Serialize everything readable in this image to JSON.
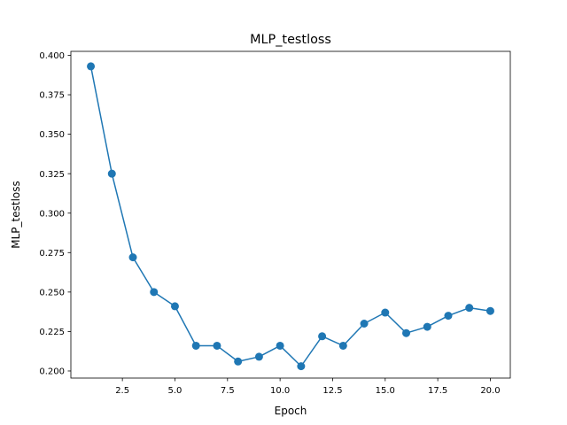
{
  "chart_data": {
    "type": "line",
    "title": "MLP_testloss",
    "xlabel": "Epoch",
    "ylabel": "MLP_testloss",
    "xlim": [
      0.05,
      20.95
    ],
    "ylim": [
      0.1955,
      0.4025
    ],
    "xticks": [
      2.5,
      5.0,
      7.5,
      10.0,
      12.5,
      15.0,
      17.5,
      20.0
    ],
    "xtick_labels": [
      "2.5",
      "5.0",
      "7.5",
      "10.0",
      "12.5",
      "15.0",
      "17.5",
      "20.0"
    ],
    "yticks": [
      0.2,
      0.225,
      0.25,
      0.275,
      0.3,
      0.325,
      0.35,
      0.375,
      0.4
    ],
    "ytick_labels": [
      "0.200",
      "0.225",
      "0.250",
      "0.275",
      "0.300",
      "0.325",
      "0.350",
      "0.375",
      "0.400"
    ],
    "grid": false,
    "series": [
      {
        "color": "#1f77b4",
        "marker": "circle",
        "x": [
          1,
          2,
          3,
          4,
          5,
          6,
          7,
          8,
          9,
          10,
          11,
          12,
          13,
          14,
          15,
          16,
          17,
          18,
          19,
          20
        ],
        "y": [
          0.393,
          0.325,
          0.272,
          0.25,
          0.241,
          0.216,
          0.216,
          0.206,
          0.209,
          0.216,
          0.203,
          0.222,
          0.216,
          0.23,
          0.237,
          0.224,
          0.228,
          0.235,
          0.24,
          0.238
        ]
      }
    ]
  }
}
